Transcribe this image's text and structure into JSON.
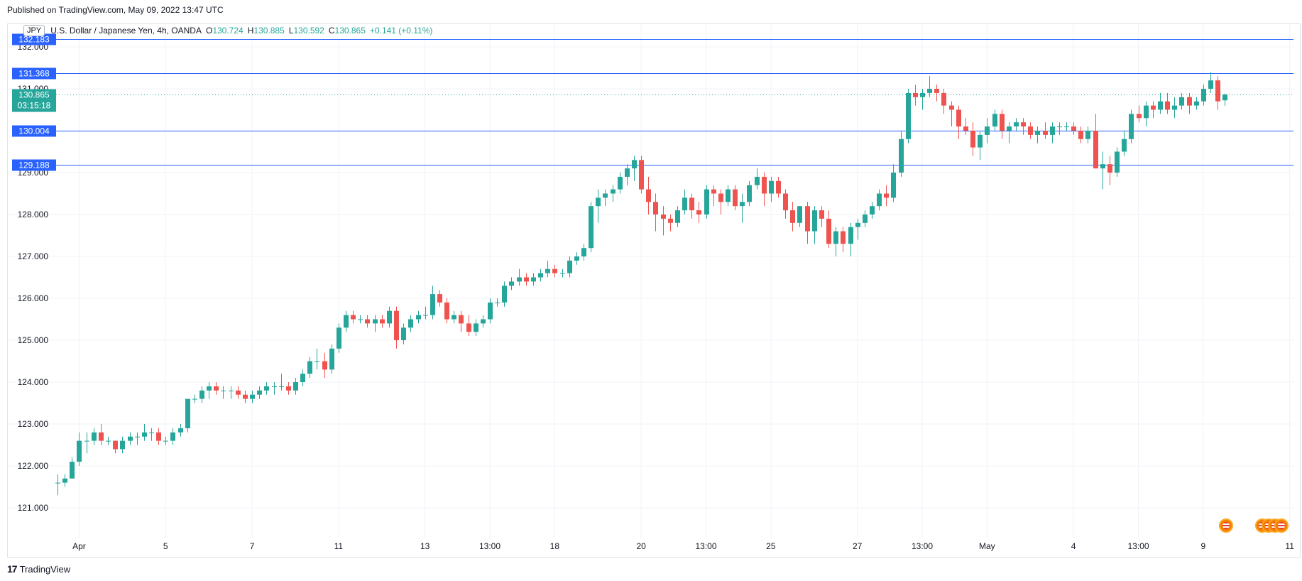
{
  "header": {
    "published": "Published on TradingView.com, May 09, 2022 13:47 UTC"
  },
  "legend": {
    "symbol_badge": "JPY",
    "name": "U.S. Dollar / Japanese Yen, 4h, OANDA",
    "o_label": "O",
    "o": "130.724",
    "h_label": "H",
    "h": "130.885",
    "l_label": "L",
    "l": "130.592",
    "c_label": "C",
    "c": "130.865",
    "change": "+0.141 (+0.11%)"
  },
  "footer": {
    "brand": "TradingView"
  },
  "colors": {
    "up": "#26a69a",
    "down": "#ef5350",
    "level_line": "#2962ff",
    "grid": "#f0f3fa"
  },
  "chart_data": {
    "type": "candlestick",
    "symbol": "USDJPY",
    "interval": "4h",
    "ylim": [
      120.0,
      132.3
    ],
    "y_ticks": [
      "121.000",
      "122.000",
      "123.000",
      "124.000",
      "125.000",
      "126.000",
      "127.000",
      "128.000",
      "129.000",
      "130.000",
      "131.000",
      "132.000"
    ],
    "x_ticks": [
      {
        "label": "Apr",
        "i": 3
      },
      {
        "label": "5",
        "i": 15
      },
      {
        "label": "7",
        "i": 27
      },
      {
        "label": "11",
        "i": 39
      },
      {
        "label": "13",
        "i": 51
      },
      {
        "label": "13:00",
        "i": 60
      },
      {
        "label": "18",
        "i": 69
      },
      {
        "label": "20",
        "i": 81
      },
      {
        "label": "13:00",
        "i": 90
      },
      {
        "label": "25",
        "i": 99
      },
      {
        "label": "27",
        "i": 111
      },
      {
        "label": "13:00",
        "i": 120
      },
      {
        "label": "May",
        "i": 129
      },
      {
        "label": "4",
        "i": 141
      },
      {
        "label": "13:00",
        "i": 150
      },
      {
        "label": "9",
        "i": 159
      },
      {
        "label": "11",
        "i": 171
      }
    ],
    "levels": [
      {
        "label": "132.183",
        "value": 132.183
      },
      {
        "label": "131.368",
        "value": 131.368
      },
      {
        "label": "130.004",
        "value": 130.004
      },
      {
        "label": "129.188",
        "value": 129.188
      }
    ],
    "last_price": {
      "label": "130.865",
      "value": 130.865,
      "countdown": "03:15:18"
    },
    "ohlc": [
      [
        121.6,
        121.8,
        121.3,
        121.6
      ],
      [
        121.6,
        121.8,
        121.5,
        121.7
      ],
      [
        121.7,
        122.2,
        121.7,
        122.1
      ],
      [
        122.1,
        122.8,
        122.0,
        122.6
      ],
      [
        122.6,
        122.8,
        122.3,
        122.6
      ],
      [
        122.6,
        122.9,
        122.5,
        122.8
      ],
      [
        122.8,
        123.0,
        122.5,
        122.6
      ],
      [
        122.6,
        122.7,
        122.5,
        122.6
      ],
      [
        122.6,
        122.6,
        122.3,
        122.4
      ],
      [
        122.4,
        122.7,
        122.3,
        122.6
      ],
      [
        122.6,
        122.8,
        122.5,
        122.7
      ],
      [
        122.7,
        122.8,
        122.5,
        122.7
      ],
      [
        122.7,
        123.0,
        122.6,
        122.8
      ],
      [
        122.8,
        122.9,
        122.6,
        122.8
      ],
      [
        122.8,
        122.9,
        122.5,
        122.6
      ],
      [
        122.6,
        122.7,
        122.5,
        122.6
      ],
      [
        122.6,
        122.9,
        122.5,
        122.8
      ],
      [
        122.8,
        123.0,
        122.7,
        122.9
      ],
      [
        122.9,
        123.6,
        122.8,
        123.6
      ],
      [
        123.6,
        123.7,
        123.5,
        123.6
      ],
      [
        123.6,
        123.9,
        123.5,
        123.8
      ],
      [
        123.8,
        124.0,
        123.6,
        123.9
      ],
      [
        123.9,
        124.0,
        123.7,
        123.8
      ],
      [
        123.8,
        123.9,
        123.6,
        123.8
      ],
      [
        123.8,
        123.9,
        123.6,
        123.8
      ],
      [
        123.8,
        123.9,
        123.6,
        123.7
      ],
      [
        123.7,
        123.8,
        123.5,
        123.6
      ],
      [
        123.6,
        123.8,
        123.5,
        123.7
      ],
      [
        123.7,
        123.9,
        123.6,
        123.8
      ],
      [
        123.8,
        124.0,
        123.7,
        123.9
      ],
      [
        123.9,
        124.0,
        123.7,
        123.9
      ],
      [
        123.9,
        124.2,
        123.8,
        123.9
      ],
      [
        123.9,
        124.0,
        123.7,
        123.8
      ],
      [
        123.8,
        124.1,
        123.7,
        124.0
      ],
      [
        124.0,
        124.3,
        123.9,
        124.2
      ],
      [
        124.2,
        124.6,
        124.1,
        124.5
      ],
      [
        124.5,
        124.8,
        124.3,
        124.5
      ],
      [
        124.5,
        124.7,
        124.1,
        124.3
      ],
      [
        124.3,
        124.9,
        124.2,
        124.8
      ],
      [
        124.8,
        125.4,
        124.7,
        125.3
      ],
      [
        125.3,
        125.7,
        125.2,
        125.6
      ],
      [
        125.6,
        125.7,
        125.4,
        125.5
      ],
      [
        125.5,
        125.6,
        125.4,
        125.5
      ],
      [
        125.5,
        125.6,
        125.3,
        125.4
      ],
      [
        125.4,
        125.6,
        125.2,
        125.5
      ],
      [
        125.5,
        125.6,
        125.3,
        125.4
      ],
      [
        125.4,
        125.8,
        125.3,
        125.7
      ],
      [
        125.7,
        125.8,
        124.8,
        125.0
      ],
      [
        125.0,
        125.4,
        124.9,
        125.3
      ],
      [
        125.3,
        125.6,
        125.2,
        125.5
      ],
      [
        125.5,
        125.7,
        125.4,
        125.6
      ],
      [
        125.6,
        125.8,
        125.5,
        125.6
      ],
      [
        125.6,
        126.3,
        125.5,
        126.1
      ],
      [
        126.1,
        126.2,
        125.8,
        125.9
      ],
      [
        125.9,
        126.0,
        125.4,
        125.5
      ],
      [
        125.5,
        125.7,
        125.4,
        125.6
      ],
      [
        125.6,
        125.7,
        125.2,
        125.4
      ],
      [
        125.4,
        125.6,
        125.1,
        125.2
      ],
      [
        125.2,
        125.5,
        125.1,
        125.4
      ],
      [
        125.4,
        125.6,
        125.3,
        125.5
      ],
      [
        125.5,
        126.0,
        125.4,
        125.9
      ],
      [
        125.9,
        126.0,
        125.8,
        125.9
      ],
      [
        125.9,
        126.4,
        125.8,
        126.3
      ],
      [
        126.3,
        126.5,
        126.2,
        126.4
      ],
      [
        126.4,
        126.7,
        126.3,
        126.5
      ],
      [
        126.5,
        126.6,
        126.3,
        126.4
      ],
      [
        126.4,
        126.6,
        126.3,
        126.5
      ],
      [
        126.5,
        126.7,
        126.4,
        126.6
      ],
      [
        126.6,
        126.9,
        126.5,
        126.7
      ],
      [
        126.7,
        126.8,
        126.5,
        126.6
      ],
      [
        126.6,
        126.7,
        126.5,
        126.6
      ],
      [
        126.6,
        127.0,
        126.5,
        126.9
      ],
      [
        126.9,
        127.1,
        126.8,
        127.0
      ],
      [
        127.0,
        127.3,
        126.9,
        127.2
      ],
      [
        127.2,
        128.3,
        127.1,
        128.2
      ],
      [
        128.2,
        128.6,
        127.8,
        128.4
      ],
      [
        128.4,
        128.6,
        128.2,
        128.5
      ],
      [
        128.5,
        128.7,
        128.3,
        128.6
      ],
      [
        128.6,
        129.0,
        128.5,
        128.9
      ],
      [
        128.9,
        129.2,
        128.7,
        129.1
      ],
      [
        129.1,
        129.4,
        128.8,
        129.3
      ],
      [
        129.3,
        129.4,
        128.5,
        128.6
      ],
      [
        128.6,
        128.9,
        128.0,
        128.3
      ],
      [
        128.3,
        128.5,
        127.6,
        128.0
      ],
      [
        128.0,
        128.2,
        127.5,
        127.9
      ],
      [
        127.9,
        128.0,
        127.6,
        127.8
      ],
      [
        127.8,
        128.2,
        127.7,
        128.1
      ],
      [
        128.1,
        128.6,
        128.0,
        128.4
      ],
      [
        128.4,
        128.5,
        127.9,
        128.1
      ],
      [
        128.1,
        128.3,
        127.8,
        128.0
      ],
      [
        128.0,
        128.7,
        127.9,
        128.6
      ],
      [
        128.6,
        128.7,
        128.2,
        128.5
      ],
      [
        128.5,
        128.6,
        128.0,
        128.3
      ],
      [
        128.3,
        128.7,
        128.2,
        128.6
      ],
      [
        128.6,
        128.7,
        128.1,
        128.2
      ],
      [
        128.2,
        128.5,
        127.8,
        128.3
      ],
      [
        128.3,
        128.8,
        128.2,
        128.7
      ],
      [
        128.7,
        129.1,
        128.6,
        128.9
      ],
      [
        128.9,
        129.0,
        128.2,
        128.5
      ],
      [
        128.5,
        128.9,
        128.3,
        128.8
      ],
      [
        128.8,
        128.9,
        128.4,
        128.5
      ],
      [
        128.5,
        128.6,
        127.9,
        128.1
      ],
      [
        128.1,
        128.3,
        127.6,
        127.8
      ],
      [
        127.8,
        128.2,
        127.7,
        128.2
      ],
      [
        128.2,
        128.3,
        127.3,
        127.6
      ],
      [
        127.6,
        128.2,
        127.3,
        128.1
      ],
      [
        128.1,
        128.2,
        127.7,
        127.9
      ],
      [
        127.9,
        128.1,
        127.2,
        127.3
      ],
      [
        127.3,
        127.7,
        127.0,
        127.6
      ],
      [
        127.6,
        127.7,
        127.1,
        127.3
      ],
      [
        127.3,
        127.8,
        127.0,
        127.7
      ],
      [
        127.7,
        127.9,
        127.4,
        127.8
      ],
      [
        127.8,
        128.1,
        127.7,
        128.0
      ],
      [
        128.0,
        128.3,
        127.9,
        128.2
      ],
      [
        128.2,
        128.6,
        128.1,
        128.5
      ],
      [
        128.5,
        128.7,
        128.2,
        128.4
      ],
      [
        128.4,
        129.2,
        128.3,
        129.0
      ],
      [
        129.0,
        130.0,
        128.9,
        129.8
      ],
      [
        129.8,
        131.0,
        129.7,
        130.9
      ],
      [
        130.9,
        131.1,
        130.6,
        130.8
      ],
      [
        130.8,
        131.0,
        130.5,
        130.9
      ],
      [
        130.9,
        131.3,
        130.8,
        131.0
      ],
      [
        131.0,
        131.1,
        130.7,
        130.9
      ],
      [
        130.9,
        131.0,
        130.4,
        130.6
      ],
      [
        130.6,
        130.7,
        130.1,
        130.5
      ],
      [
        130.5,
        130.6,
        129.8,
        130.1
      ],
      [
        130.1,
        130.3,
        129.9,
        130.0
      ],
      [
        130.0,
        130.2,
        129.4,
        129.6
      ],
      [
        129.6,
        130.0,
        129.3,
        129.9
      ],
      [
        129.9,
        130.3,
        129.7,
        130.1
      ],
      [
        130.1,
        130.5,
        130.0,
        130.4
      ],
      [
        130.4,
        130.5,
        129.8,
        130.0
      ],
      [
        130.0,
        130.2,
        129.7,
        130.1
      ],
      [
        130.1,
        130.3,
        130.0,
        130.2
      ],
      [
        130.2,
        130.3,
        129.9,
        130.1
      ],
      [
        130.1,
        130.2,
        129.8,
        129.9
      ],
      [
        129.9,
        130.1,
        129.7,
        130.0
      ],
      [
        130.0,
        130.2,
        129.8,
        129.9
      ],
      [
        129.9,
        130.2,
        129.7,
        130.1
      ],
      [
        130.1,
        130.2,
        129.9,
        130.1
      ],
      [
        130.1,
        130.2,
        130.0,
        130.1
      ],
      [
        130.1,
        130.2,
        129.9,
        130.0
      ],
      [
        130.0,
        130.1,
        129.7,
        129.8
      ],
      [
        129.8,
        130.1,
        129.7,
        130.0
      ],
      [
        130.0,
        130.4,
        129.1,
        129.1
      ],
      [
        129.1,
        129.5,
        128.6,
        129.2
      ],
      [
        129.2,
        129.4,
        128.7,
        129.0
      ],
      [
        129.0,
        129.6,
        128.9,
        129.5
      ],
      [
        129.5,
        130.0,
        129.4,
        129.8
      ],
      [
        129.8,
        130.5,
        129.7,
        130.4
      ],
      [
        130.4,
        130.6,
        130.2,
        130.3
      ],
      [
        130.3,
        130.7,
        130.1,
        130.6
      ],
      [
        130.6,
        130.7,
        130.3,
        130.5
      ],
      [
        130.5,
        130.9,
        130.4,
        130.7
      ],
      [
        130.7,
        130.9,
        130.4,
        130.5
      ],
      [
        130.5,
        130.8,
        130.3,
        130.6
      ],
      [
        130.6,
        130.9,
        130.5,
        130.8
      ],
      [
        130.8,
        130.9,
        130.4,
        130.6
      ],
      [
        130.6,
        130.8,
        130.5,
        130.7
      ],
      [
        130.7,
        131.1,
        130.6,
        131.0
      ],
      [
        131.0,
        131.4,
        130.9,
        131.2
      ],
      [
        131.2,
        131.3,
        130.5,
        130.7
      ],
      [
        130.724,
        130.885,
        130.592,
        130.865
      ]
    ]
  }
}
